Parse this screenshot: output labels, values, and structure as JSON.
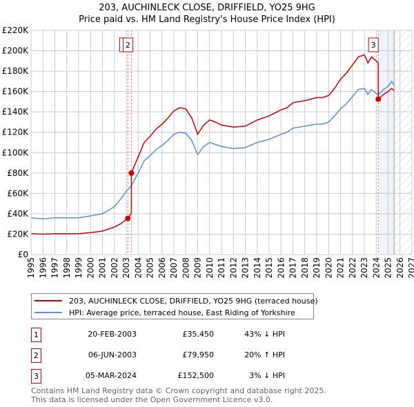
{
  "title_line1": "203, AUCHINLECK CLOSE, DRIFFIELD, YO25 9HG",
  "title_line2": "Price paid vs. HM Land Registry's House Price Index (HPI)",
  "chart_data": {
    "type": "line",
    "xlim": [
      1995,
      2027
    ],
    "ylim": [
      0,
      220000
    ],
    "x_ticks": [
      "1995",
      "1996",
      "1997",
      "1998",
      "1999",
      "2000",
      "2001",
      "2002",
      "2003",
      "2004",
      "2005",
      "2006",
      "2007",
      "2008",
      "2009",
      "2010",
      "2011",
      "2012",
      "2013",
      "2014",
      "2015",
      "2016",
      "2017",
      "2018",
      "2019",
      "2020",
      "2021",
      "2022",
      "2023",
      "2024",
      "2025",
      "2026",
      "2027"
    ],
    "y_ticks": [
      {
        "v": 0,
        "label": "£0"
      },
      {
        "v": 20000,
        "label": "£20K"
      },
      {
        "v": 40000,
        "label": "£40K"
      },
      {
        "v": 60000,
        "label": "£60K"
      },
      {
        "v": 80000,
        "label": "£80K"
      },
      {
        "v": 100000,
        "label": "£100K"
      },
      {
        "v": 120000,
        "label": "£120K"
      },
      {
        "v": 140000,
        "label": "£140K"
      },
      {
        "v": 160000,
        "label": "£160K"
      },
      {
        "v": 180000,
        "label": "£180K"
      },
      {
        "v": 200000,
        "label": "£200K"
      },
      {
        "v": 220000,
        "label": "£220K"
      }
    ],
    "grid": true,
    "series": [
      {
        "name": "203, AUCHINLECK CLOSE, DRIFFIELD, YO25 9HG (terraced house)",
        "color": "#cc0000",
        "x": [
          1995,
          1996,
          1997,
          1998,
          1999,
          2000,
          2001,
          2002,
          2002.5,
          2003.13,
          2003.13,
          2003.43,
          2003.43,
          2004,
          2004.5,
          2005,
          2005.5,
          2006,
          2006.5,
          2007,
          2007.5,
          2008,
          2008.5,
          2009,
          2009.5,
          2010,
          2010.5,
          2011,
          2012,
          2013,
          2014,
          2015,
          2016,
          2016.5,
          2017,
          2018,
          2019,
          2019.5,
          2020,
          2020.5,
          2021,
          2021.5,
          2022,
          2022.5,
          2023,
          2023.3,
          2023.6,
          2024,
          2024.17,
          2024.17,
          2024.6,
          2025,
          2025.3,
          2025.5
        ],
        "y": [
          20500,
          20000,
          20500,
          20500,
          20500,
          21500,
          23000,
          27000,
          30000,
          35450,
          35450,
          40500,
          79950,
          96000,
          110000,
          116000,
          123000,
          128000,
          134000,
          141000,
          144000,
          143000,
          134000,
          118000,
          127000,
          132000,
          130000,
          127000,
          125000,
          126000,
          132000,
          136000,
          142000,
          144000,
          149000,
          151000,
          154000,
          154000,
          156000,
          163000,
          172000,
          178000,
          186000,
          194000,
          196000,
          188000,
          194000,
          190000,
          188000,
          152500,
          157000,
          160000,
          163000,
          161000
        ]
      },
      {
        "name": "HPI: Average price, terraced house, East Riding of Yorkshire",
        "color": "#5b8fd4",
        "x": [
          1995,
          1996,
          1997,
          1998,
          1999,
          2000,
          2001,
          2002,
          2002.5,
          2003,
          2003.4,
          2004,
          2004.5,
          2005,
          2005.5,
          2006,
          2006.5,
          2007,
          2007.5,
          2008,
          2008.5,
          2009,
          2009.5,
          2010,
          2010.5,
          2011,
          2012,
          2013,
          2014,
          2015,
          2016,
          2016.5,
          2017,
          2018,
          2019,
          2019.5,
          2020,
          2020.5,
          2021,
          2021.5,
          2022,
          2022.5,
          2023,
          2023.3,
          2023.6,
          2024,
          2024.2,
          2024.6,
          2025,
          2025.3,
          2025.5
        ],
        "y": [
          36000,
          35000,
          36000,
          36000,
          36000,
          38000,
          40000,
          47000,
          54000,
          62000,
          67000,
          80000,
          92000,
          97000,
          103000,
          107000,
          112000,
          118000,
          120000,
          119000,
          112000,
          98000,
          106000,
          110000,
          108000,
          106000,
          104000,
          105000,
          110000,
          113000,
          118000,
          120000,
          124000,
          126000,
          128000,
          128000,
          130000,
          136000,
          143000,
          148000,
          155000,
          162000,
          163000,
          157000,
          162000,
          158000,
          157000,
          162000,
          165000,
          170000,
          166000
        ]
      }
    ],
    "sales": [
      {
        "label": "1",
        "x": 2003.13,
        "y": 35450
      },
      {
        "label": "2",
        "x": 2003.43,
        "y": 79950
      },
      {
        "label": "3",
        "x": 2024.17,
        "y": 152500
      }
    ],
    "forecast_start": 2025.5,
    "legend": "below"
  },
  "legend": {
    "red": "203, AUCHINLECK CLOSE, DRIFFIELD, YO25 9HG (terraced house)",
    "blue": "HPI: Average price, terraced house, East Riding of Yorkshire"
  },
  "transactions": [
    {
      "num": "1",
      "date": "20-FEB-2003",
      "price": "£35,450",
      "hpi": "43% ↓ HPI"
    },
    {
      "num": "2",
      "date": "06-JUN-2003",
      "price": "£79,950",
      "hpi": "20% ↑ HPI"
    },
    {
      "num": "3",
      "date": "05-MAR-2024",
      "price": "£152,500",
      "hpi": "3% ↓ HPI"
    }
  ],
  "footer_line1": "Contains HM Land Registry data © Crown copyright and database right 2025.",
  "footer_line2": "This data is licensed under the Open Government Licence v3.0."
}
